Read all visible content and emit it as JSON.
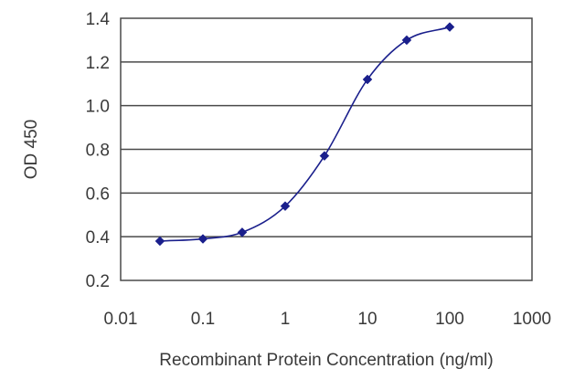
{
  "chart_data": {
    "type": "line",
    "title": "",
    "xlabel": "Recombinant Protein Concentration (ng/ml)",
    "ylabel": "OD 450",
    "xscale": "log",
    "xlim": [
      0.01,
      1000
    ],
    "ylim": [
      0.2,
      1.4
    ],
    "x_ticks": [
      0.01,
      0.1,
      1,
      10,
      100,
      1000
    ],
    "x_tick_labels": [
      "0.01",
      "0.1",
      "1",
      "10",
      "100",
      "1000"
    ],
    "y_ticks": [
      0.2,
      0.4,
      0.6,
      0.8,
      1.0,
      1.2,
      1.4
    ],
    "y_tick_labels": [
      "0.2",
      "0.4",
      "0.6",
      "0.8",
      "1.0",
      "1.2",
      "1.4"
    ],
    "grid": "horizontal",
    "legend": "none",
    "series": [
      {
        "x": [
          0.03,
          0.1,
          0.3,
          1,
          3,
          10,
          30,
          100
        ],
        "y": [
          0.38,
          0.39,
          0.42,
          0.54,
          0.77,
          1.12,
          1.3,
          1.36
        ],
        "color": "#1a1f8c"
      }
    ]
  }
}
